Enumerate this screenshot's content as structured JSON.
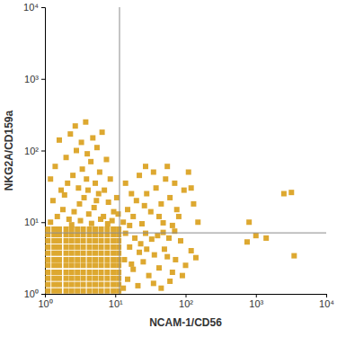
{
  "chart_data": {
    "type": "scatter",
    "marker": "square",
    "color": "#DDA830",
    "log": true,
    "grid": false,
    "x_label": "NCAM-1/CD56",
    "y_label": "NKG2A/CD159a",
    "xlim": [
      1,
      10000
    ],
    "ylim": [
      1,
      10000
    ],
    "xticks": [
      {
        "value": 1,
        "label": "10⁰"
      },
      {
        "value": 10,
        "label": "10¹"
      },
      {
        "value": 100,
        "label": "10²"
      },
      {
        "value": 1000,
        "label": "10³"
      },
      {
        "value": 10000,
        "label": "10⁴"
      }
    ],
    "yticks": [
      {
        "value": 1,
        "label": "10⁰"
      },
      {
        "value": 10,
        "label": "10¹"
      },
      {
        "value": 100,
        "label": "10²"
      },
      {
        "value": 1000,
        "label": "10³"
      },
      {
        "value": 10000,
        "label": "10⁴"
      }
    ],
    "gates": {
      "x": 11.5,
      "y": 7.1
    },
    "x": [
      1.1,
      1.35,
      1.6,
      2.0,
      2.4,
      2.9,
      3.5,
      4.3,
      5.2,
      6.3,
      7.7,
      9.4,
      11.2,
      1.1,
      1.35,
      1.6,
      2.0,
      2.4,
      2.9,
      3.5,
      4.3,
      5.2,
      6.3,
      7.7,
      9.4,
      11.2,
      1.1,
      1.35,
      1.6,
      2.0,
      2.4,
      2.9,
      3.5,
      4.3,
      5.2,
      6.3,
      7.7,
      9.4,
      11.2,
      1.1,
      1.35,
      1.6,
      2.0,
      2.4,
      2.9,
      3.5,
      4.3,
      5.2,
      6.3,
      7.7,
      9.4,
      11.2,
      1.1,
      1.35,
      1.6,
      2.0,
      2.4,
      2.9,
      3.5,
      4.3,
      5.2,
      6.3,
      7.7,
      9.4,
      11.2,
      1.1,
      1.35,
      1.6,
      2.0,
      2.4,
      2.9,
      3.5,
      4.3,
      5.2,
      6.3,
      7.7,
      9.4,
      11.2,
      1.1,
      1.35,
      1.6,
      2.0,
      2.4,
      2.9,
      3.5,
      4.3,
      5.2,
      6.3,
      7.7,
      9.4,
      11.2,
      1.1,
      1.35,
      1.6,
      2.0,
      2.4,
      2.9,
      3.5,
      4.3,
      5.2,
      6.3,
      7.7,
      9.4,
      11.2,
      1.1,
      1.35,
      1.6,
      2.0,
      2.4,
      2.9,
      3.5,
      4.3,
      5.2,
      6.3,
      7.7,
      9.4,
      11.2,
      1.1,
      1.35,
      1.6,
      2.0,
      2.4,
      2.9,
      3.5,
      4.3,
      5.2,
      6.3,
      7.7,
      9.4,
      11.2,
      1.1,
      1.35,
      1.6,
      2.0,
      2.4,
      2.9,
      3.5,
      4.3,
      5.2,
      6.3,
      7.7,
      9.4,
      11.2,
      1.2,
      1.5,
      1.8,
      2.2,
      2.6,
      3.1,
      3.6,
      4.2,
      5,
      5.8,
      6.8,
      8,
      9.5,
      1.3,
      1.7,
      2.1,
      2.5,
      3,
      3.4,
      3.9,
      4.5,
      5.2,
      6,
      7,
      8.5,
      1.4,
      2,
      2.8,
      3.3,
      4,
      4.8,
      5.5,
      6.5,
      7.5,
      2.3,
      1.6,
      2.7,
      3.8,
      1.2,
      9,
      10.5,
      11,
      7.8,
      6.2,
      4.6,
      3.2,
      2.4,
      1.9,
      5.4,
      4.1,
      13,
      15,
      18,
      21,
      25,
      30,
      36,
      42,
      50,
      60,
      72,
      85,
      100,
      120,
      13.5,
      16,
      19,
      23,
      27,
      33,
      40,
      48,
      58,
      70,
      14,
      17,
      22,
      28,
      35,
      45,
      55,
      65,
      90,
      140,
      1000,
      750,
      1400,
      3500,
      13,
      15,
      18,
      20,
      24,
      28,
      32,
      38,
      45,
      52,
      60,
      70,
      80,
      95,
      110,
      130,
      150,
      14,
      17,
      22,
      27,
      35,
      42,
      55,
      65,
      75,
      16,
      26,
      48,
      120,
      2500,
      3200,
      800
    ],
    "values": [
      1.1,
      1.1,
      1.1,
      1.1,
      1.1,
      1.1,
      1.1,
      1.1,
      1.1,
      1.1,
      1.1,
      1.1,
      1.1,
      1.35,
      1.35,
      1.35,
      1.35,
      1.35,
      1.35,
      1.35,
      1.35,
      1.35,
      1.35,
      1.35,
      1.35,
      1.35,
      1.65,
      1.65,
      1.65,
      1.65,
      1.65,
      1.65,
      1.65,
      1.65,
      1.65,
      1.65,
      1.65,
      1.65,
      1.65,
      2.0,
      2.0,
      2.0,
      2.0,
      2.0,
      2.0,
      2.0,
      2.0,
      2.0,
      2.0,
      2.0,
      2.0,
      2.0,
      2.5,
      2.5,
      2.5,
      2.5,
      2.5,
      2.5,
      2.5,
      2.5,
      2.5,
      2.5,
      2.5,
      2.5,
      2.5,
      3.0,
      3.0,
      3.0,
      3.0,
      3.0,
      3.0,
      3.0,
      3.0,
      3.0,
      3.0,
      3.0,
      3.0,
      3.0,
      3.7,
      3.7,
      3.7,
      3.7,
      3.7,
      3.7,
      3.7,
      3.7,
      3.7,
      3.7,
      3.7,
      3.7,
      3.7,
      4.5,
      4.5,
      4.5,
      4.5,
      4.5,
      4.5,
      4.5,
      4.5,
      4.5,
      4.5,
      4.5,
      4.5,
      4.5,
      5.5,
      5.5,
      5.5,
      5.5,
      5.5,
      5.5,
      5.5,
      5.5,
      5.5,
      5.5,
      5.5,
      5.5,
      5.5,
      6.7,
      6.7,
      6.7,
      6.7,
      6.7,
      6.7,
      6.7,
      6.7,
      6.7,
      6.7,
      6.7,
      6.7,
      6.7,
      8,
      8,
      8,
      8,
      8,
      8,
      8,
      8,
      8,
      8,
      8,
      8,
      8,
      10,
      12,
      15,
      11,
      14,
      18,
      22,
      13,
      16,
      25,
      12,
      19,
      14,
      20,
      28,
      35,
      45,
      30,
      55,
      40,
      70,
      35,
      50,
      28,
      40,
      60,
      80,
      100,
      130,
      90,
      150,
      110,
      180,
      75,
      170,
      140,
      220,
      250,
      40,
      10.5,
      22,
      13,
      9.5,
      11,
      9.6,
      10.5,
      9.2,
      24,
      20,
      28,
      1.2,
      1.6,
      2.2,
      1.3,
      2.8,
      1.8,
      3.5,
      2.3,
      4.2,
      1.5,
      3,
      5.5,
      2.5,
      4,
      3,
      4.5,
      6,
      5,
      7,
      5.8,
      6.5,
      7.2,
      6,
      7.5,
      7,
      2.6,
      3.8,
      4.2,
      1.4,
      1.2,
      3.3,
      2,
      1.8,
      3.2,
      6.5,
      5.3,
      6,
      3.4,
      10,
      15,
      12,
      20,
      9.5,
      25,
      14,
      30,
      18,
      40,
      22,
      35,
      12,
      28,
      50,
      18,
      10,
      35,
      25,
      45,
      60,
      50,
      12,
      60,
      9,
      15,
      9,
      17,
      9.8,
      30,
      25,
      26,
      10
    ]
  }
}
